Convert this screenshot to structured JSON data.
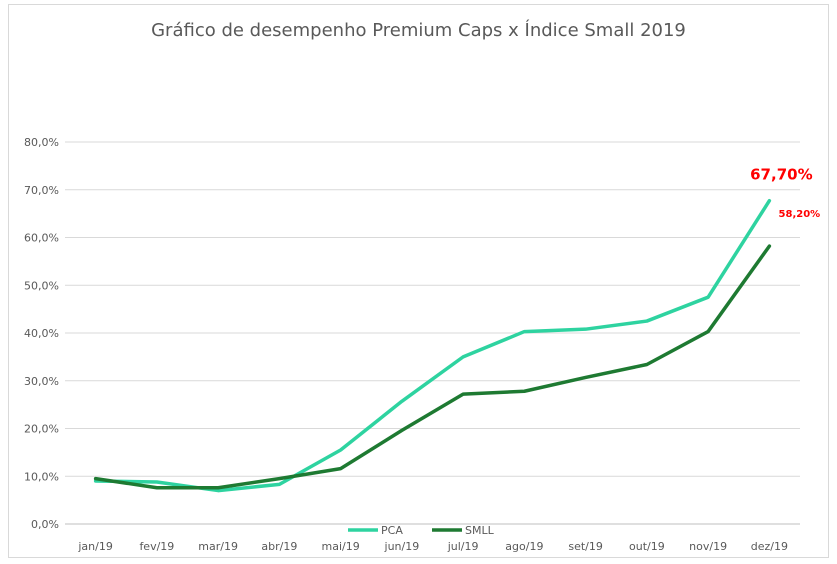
{
  "chart_data": {
    "type": "line",
    "title": "Gráfico de desempenho Premium Caps x Índice Small 2019",
    "xlabel": "",
    "ylabel": "",
    "categories": [
      "jan/19",
      "fev/19",
      "mar/19",
      "abr/19",
      "mai/19",
      "jun/19",
      "jul/19",
      "ago/19",
      "set/19",
      "out/19",
      "nov/19",
      "dez/19"
    ],
    "y_ticks": [
      "0,0%",
      "10,0%",
      "20,0%",
      "30,0%",
      "40,0%",
      "50,0%",
      "60,0%",
      "70,0%",
      "80,0%"
    ],
    "ylim": [
      0,
      80
    ],
    "grid": true,
    "legend_position": "bottom",
    "series": [
      {
        "name": "PCA",
        "color": "#2ed3a0",
        "values": [
          9.0,
          8.8,
          7.0,
          8.3,
          15.5,
          25.7,
          35.0,
          40.3,
          40.8,
          42.5,
          47.5,
          67.7
        ],
        "end_label": "67,70%",
        "end_label_color": "#ff0000"
      },
      {
        "name": "SMLL",
        "color": "#1e7a32",
        "values": [
          9.5,
          7.6,
          7.6,
          9.5,
          11.6,
          19.6,
          27.2,
          27.8,
          30.7,
          33.4,
          40.3,
          58.2
        ],
        "end_label": "58,20%",
        "end_label_color": "#ff0000"
      }
    ]
  }
}
